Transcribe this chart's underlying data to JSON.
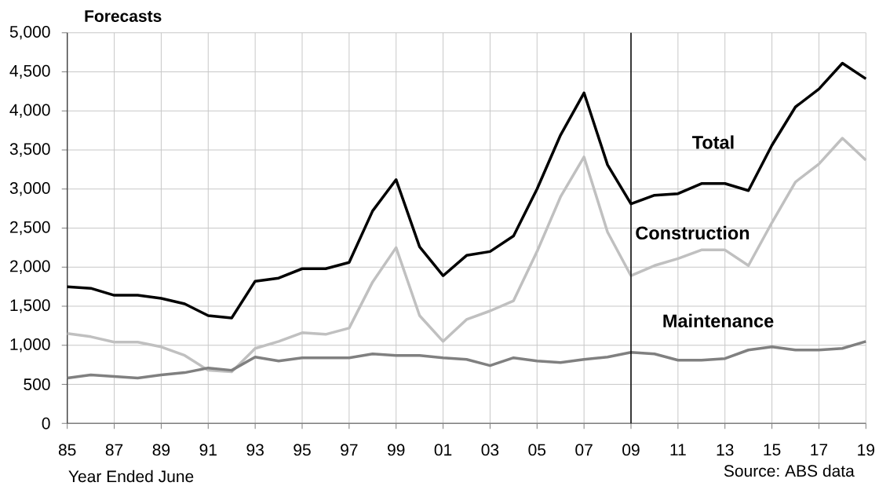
{
  "chart_data": {
    "type": "line",
    "ylabel": "Forecasts",
    "xlabel": "Year Ended June",
    "annotations": [
      "Source: ABS data"
    ],
    "x": [
      1985,
      1986,
      1987,
      1988,
      1989,
      1990,
      1991,
      1992,
      1993,
      1994,
      1995,
      1996,
      1997,
      1998,
      1999,
      2000,
      2001,
      2002,
      2003,
      2004,
      2005,
      2006,
      2007,
      2008,
      2009,
      2010,
      2011,
      2012,
      2013,
      2014,
      2015,
      2016,
      2017,
      2018,
      2019
    ],
    "series": [
      {
        "name": "Total",
        "color": "#000000",
        "values": [
          1750,
          1730,
          1640,
          1640,
          1600,
          1530,
          1380,
          1350,
          1820,
          1860,
          1980,
          1980,
          2060,
          2720,
          3120,
          2260,
          1890,
          2150,
          2200,
          2400,
          3000,
          3690,
          4230,
          3310,
          2810,
          2920,
          2940,
          3070,
          3070,
          2980,
          3560,
          4050,
          4280,
          4610,
          4410
        ]
      },
      {
        "name": "Construction",
        "color": "#c0c0c0",
        "values": [
          1150,
          1110,
          1040,
          1040,
          980,
          870,
          680,
          660,
          960,
          1050,
          1160,
          1140,
          1220,
          1810,
          2250,
          1380,
          1050,
          1330,
          1440,
          1570,
          2200,
          2900,
          3410,
          2450,
          1890,
          2020,
          2110,
          2220,
          2220,
          2020,
          2570,
          3090,
          3320,
          3650,
          3370
        ]
      },
      {
        "name": "Maintenance",
        "color": "#808080",
        "values": [
          580,
          620,
          600,
          580,
          620,
          650,
          710,
          680,
          850,
          800,
          840,
          840,
          840,
          890,
          870,
          870,
          840,
          820,
          740,
          840,
          800,
          780,
          820,
          850,
          910,
          890,
          810,
          810,
          830,
          940,
          980,
          940,
          940,
          960,
          1050
        ]
      }
    ],
    "xlim": [
      1985,
      2019
    ],
    "xticks": [
      {
        "value": 1985,
        "label": "85"
      },
      {
        "value": 1987,
        "label": "87"
      },
      {
        "value": 1989,
        "label": "89"
      },
      {
        "value": 1991,
        "label": "91"
      },
      {
        "value": 1993,
        "label": "93"
      },
      {
        "value": 1995,
        "label": "95"
      },
      {
        "value": 1997,
        "label": "97"
      },
      {
        "value": 1999,
        "label": "99"
      },
      {
        "value": 2001,
        "label": "01"
      },
      {
        "value": 2003,
        "label": "03"
      },
      {
        "value": 2005,
        "label": "05"
      },
      {
        "value": 2007,
        "label": "07"
      },
      {
        "value": 2009,
        "label": "09"
      },
      {
        "value": 2011,
        "label": "11"
      },
      {
        "value": 2013,
        "label": "13"
      },
      {
        "value": 2015,
        "label": "15"
      },
      {
        "value": 2017,
        "label": "17"
      },
      {
        "value": 2019,
        "label": "19"
      }
    ],
    "ylim": [
      0,
      5000
    ],
    "yticks": [
      0,
      500,
      {
        "value": 1000,
        "label": "1,000"
      },
      {
        "value": 1500,
        "label": "1,500"
      },
      {
        "value": 2000,
        "label": "2,000"
      },
      {
        "value": 2500,
        "label": "2,500"
      },
      {
        "value": 3000,
        "label": "3,000"
      },
      {
        "value": 3500,
        "label": "3,500"
      },
      {
        "value": 4000,
        "label": "4,000"
      },
      {
        "value": 4500,
        "label": "4,500"
      },
      {
        "value": 5000,
        "label": "5,000"
      }
    ],
    "ref_lines": [
      {
        "axis": "x",
        "value": 2009,
        "color": "#000000"
      }
    ],
    "grid": true
  }
}
